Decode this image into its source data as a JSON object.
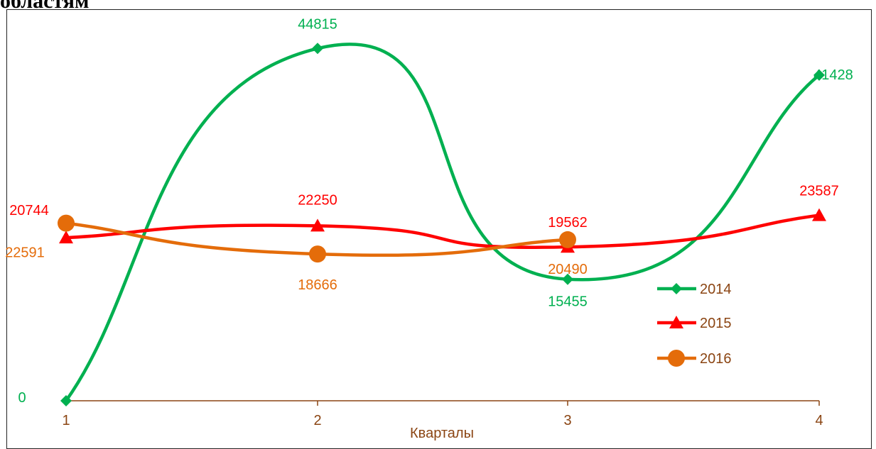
{
  "page_heading_fragment": "областям",
  "chart_data": {
    "type": "line",
    "title": "",
    "xlabel": "Кварталы",
    "ylabel": "",
    "categories": [
      "1",
      "2",
      "3",
      "4"
    ],
    "ylim": [
      0,
      48000
    ],
    "grid": false,
    "legend": "right",
    "series": [
      {
        "name": "2014",
        "values": [
          0,
          44815,
          15455,
          41428
        ],
        "labels": [
          "0",
          "44815",
          "15455",
          "41428"
        ],
        "color": "#00B050",
        "marker": "diamond"
      },
      {
        "name": "2015",
        "values": [
          20744,
          22250,
          19562,
          23587
        ],
        "labels": [
          "20744",
          "22250",
          "19562",
          "23587"
        ],
        "color": "#FF0000",
        "marker": "triangle"
      },
      {
        "name": "2016",
        "values": [
          22591,
          18666,
          20490,
          null
        ],
        "labels": [
          "22591",
          "18666",
          "20490",
          ""
        ],
        "color": "#E46C0A",
        "marker": "circle"
      }
    ]
  }
}
